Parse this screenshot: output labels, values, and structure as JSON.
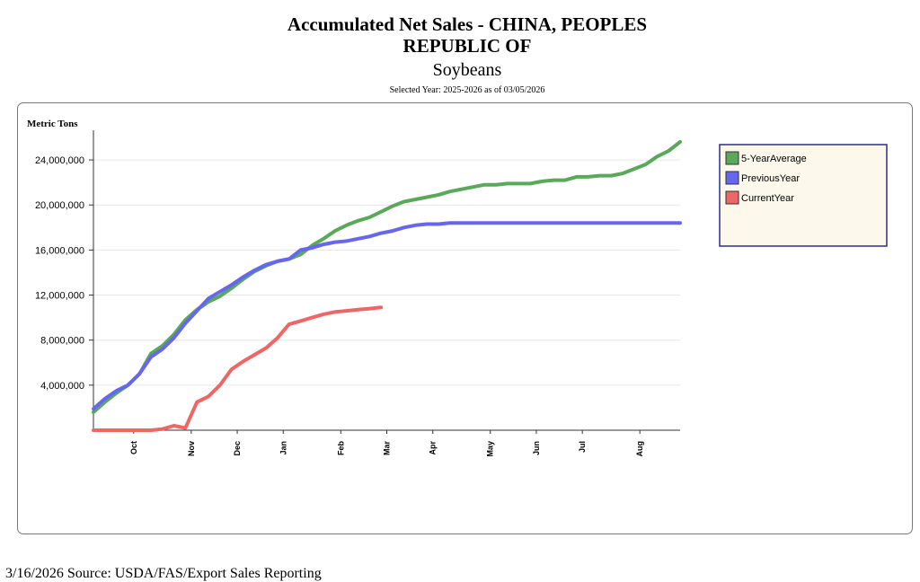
{
  "header": {
    "title_line1": "Accumulated Net Sales - CHINA, PEOPLES",
    "title_line2": "REPUBLIC OF",
    "commodity": "Soybeans",
    "selected_year": "Selected Year: 2025-2026 as of 03/05/2026"
  },
  "footer": {
    "text": "3/16/2026 Source: USDA/FAS/Export Sales Reporting"
  },
  "chart_data": {
    "type": "line",
    "ylabel": "Metric Tons",
    "ylim": [
      0,
      26000000
    ],
    "y_ticks": [
      4000000,
      8000000,
      12000000,
      16000000,
      20000000,
      24000000
    ],
    "y_tick_labels": [
      "4,000,000",
      "8,000,000",
      "12,000,000",
      "16,000,000",
      "20,000,000",
      "24,000,000"
    ],
    "x_week_range": [
      0,
      51
    ],
    "x_ticks": [
      {
        "label": "Oct",
        "week": 3.5
      },
      {
        "label": "Nov",
        "week": 8.5
      },
      {
        "label": "Dec",
        "week": 12.5
      },
      {
        "label": "Jan",
        "week": 16.5
      },
      {
        "label": "Feb",
        "week": 21.5
      },
      {
        "label": "Mar",
        "week": 25.5
      },
      {
        "label": "Apr",
        "week": 29.5
      },
      {
        "label": "May",
        "week": 34.5
      },
      {
        "label": "Jun",
        "week": 38.5
      },
      {
        "label": "Jul",
        "week": 42.5
      },
      {
        "label": "Aug",
        "week": 47.5
      }
    ],
    "legend_position": "right",
    "grid": true,
    "series": [
      {
        "name": "5-YearAverage",
        "color": "#5aa85a",
        "x": [
          0,
          1,
          2,
          3,
          4,
          5,
          6,
          7,
          8,
          9,
          10,
          11,
          12,
          13,
          14,
          15,
          16,
          17,
          18,
          19,
          20,
          21,
          22,
          23,
          24,
          25,
          26,
          27,
          28,
          29,
          30,
          31,
          32,
          33,
          34,
          35,
          36,
          37,
          38,
          39,
          40,
          41,
          42,
          43,
          44,
          45,
          46,
          47,
          48,
          49,
          50,
          51
        ],
        "values": [
          1600000,
          2500000,
          3300000,
          4000000,
          5000000,
          6800000,
          7500000,
          8500000,
          9800000,
          10700000,
          11400000,
          11900000,
          12600000,
          13400000,
          14100000,
          14600000,
          15000000,
          15200000,
          15600000,
          16400000,
          17000000,
          17700000,
          18200000,
          18600000,
          18900000,
          19400000,
          19900000,
          20300000,
          20500000,
          20700000,
          20900000,
          21200000,
          21400000,
          21600000,
          21800000,
          21800000,
          21900000,
          21900000,
          21900000,
          22100000,
          22200000,
          22200000,
          22500000,
          22500000,
          22600000,
          22600000,
          22800000,
          23200000,
          23600000,
          24300000,
          24800000,
          25600000
        ]
      },
      {
        "name": "PreviousYear",
        "color": "#6666ee",
        "x": [
          0,
          1,
          2,
          3,
          4,
          5,
          6,
          7,
          8,
          9,
          10,
          11,
          12,
          13,
          14,
          15,
          16,
          17,
          18,
          19,
          20,
          21,
          22,
          23,
          24,
          25,
          26,
          27,
          28,
          29,
          30,
          31,
          32,
          33,
          34,
          35,
          36,
          37,
          38,
          39,
          40,
          41,
          42,
          43,
          44,
          45,
          46,
          47,
          48,
          49,
          50,
          51
        ],
        "values": [
          1900000,
          2800000,
          3500000,
          4000000,
          5000000,
          6500000,
          7200000,
          8200000,
          9500000,
          10600000,
          11700000,
          12300000,
          12900000,
          13600000,
          14200000,
          14700000,
          15000000,
          15200000,
          16000000,
          16200000,
          16500000,
          16700000,
          16800000,
          17000000,
          17200000,
          17500000,
          17700000,
          18000000,
          18200000,
          18300000,
          18300000,
          18400000,
          18400000,
          18400000,
          18400000,
          18400000,
          18400000,
          18400000,
          18400000,
          18400000,
          18400000,
          18400000,
          18400000,
          18400000,
          18400000,
          18400000,
          18400000,
          18400000,
          18400000,
          18400000,
          18400000,
          18400000
        ]
      },
      {
        "name": "CurrentYear",
        "color": "#ee6666",
        "x": [
          0,
          1,
          2,
          3,
          4,
          5,
          6,
          7,
          8,
          9,
          10,
          11,
          12,
          13,
          14,
          15,
          16,
          17,
          18,
          19,
          20,
          21,
          22,
          23,
          24,
          25
        ],
        "values": [
          0,
          0,
          0,
          0,
          0,
          0,
          100000,
          400000,
          200000,
          2500000,
          3000000,
          4000000,
          5400000,
          6100000,
          6700000,
          7300000,
          8200000,
          9400000,
          9700000,
          10000000,
          10300000,
          10500000,
          10600000,
          10700000,
          10800000,
          10900000
        ]
      }
    ]
  }
}
